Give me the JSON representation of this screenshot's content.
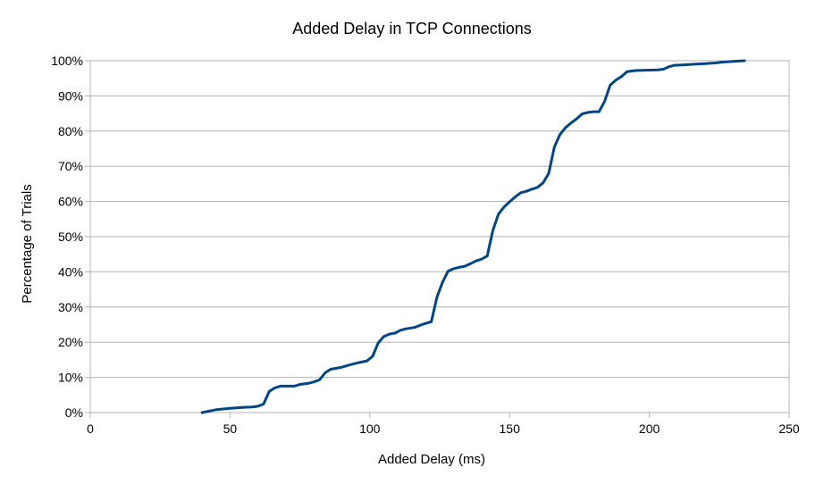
{
  "chart_data": {
    "type": "line",
    "title": "Added Delay in TCP Connections",
    "xlabel": "Added Delay (ms)",
    "ylabel": "Percentage of Trials",
    "xlim": [
      0,
      250
    ],
    "ylim": [
      0,
      100
    ],
    "x_ticks": [
      "0",
      "50",
      "100",
      "150",
      "200",
      "250"
    ],
    "y_ticks": [
      "0%",
      "10%",
      "20%",
      "30%",
      "40%",
      "50%",
      "60%",
      "70%",
      "80%",
      "90%",
      "100%"
    ],
    "grid": "horizontal",
    "legend": "none",
    "series": [
      {
        "color": "#004586",
        "x": [
          40,
          45,
          50,
          55,
          58,
          60,
          62,
          64,
          66,
          68,
          70,
          73,
          75,
          78,
          80,
          82,
          84,
          86,
          88,
          90,
          93,
          96,
          99,
          101,
          103,
          105,
          107,
          109,
          111,
          113,
          116,
          119,
          122,
          124,
          126,
          128,
          130,
          132,
          134,
          136,
          138,
          140,
          142,
          144,
          146,
          148,
          150,
          152,
          154,
          156,
          158,
          160,
          162,
          164,
          166,
          168,
          170,
          172,
          174,
          176,
          178,
          180,
          182,
          184,
          186,
          188,
          190,
          192,
          195,
          199,
          203,
          205,
          207,
          209,
          212,
          216,
          220,
          224,
          226,
          230,
          234
        ],
        "y": [
          0,
          0.8,
          1.2,
          1.5,
          1.6,
          1.8,
          2.4,
          6,
          7,
          7.5,
          7.5,
          7.5,
          8,
          8.3,
          8.7,
          9.3,
          11.3,
          12.3,
          12.6,
          12.9,
          13.6,
          14.2,
          14.7,
          16,
          19.8,
          21.6,
          22.3,
          22.6,
          23.4,
          23.8,
          24.2,
          25.1,
          25.8,
          32.8,
          37,
          40.2,
          40.9,
          41.3,
          41.6,
          42.3,
          43.1,
          43.6,
          44.5,
          51.7,
          56.4,
          58.4,
          59.9,
          61.3,
          62.5,
          62.9,
          63.5,
          64.0,
          65.3,
          68.0,
          75.4,
          79.0,
          81.0,
          82.3,
          83.5,
          84.9,
          85.3,
          85.5,
          85.5,
          88.5,
          93.1,
          94.5,
          95.5,
          96.9,
          97.2,
          97.3,
          97.4,
          97.6,
          98.3,
          98.7,
          98.8,
          99.0,
          99.2,
          99.4,
          99.6,
          99.8,
          100
        ]
      }
    ]
  }
}
